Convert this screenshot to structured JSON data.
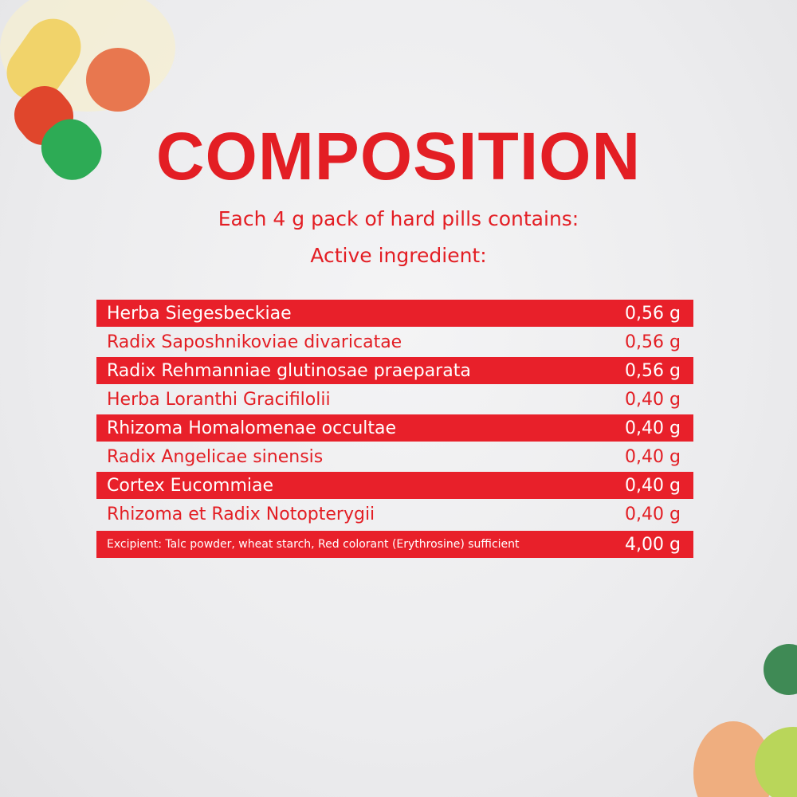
{
  "header": {
    "title": "COMPOSITION",
    "subtitle": [
      "Each 4 g pack of hard pills contains:",
      "Active ingredient:"
    ]
  },
  "table": {
    "rows": [
      [
        "Herba Siegesbeckiae",
        "0,56 g"
      ],
      [
        "Radix Saposhnikoviae divaricatae",
        "0,56 g"
      ],
      [
        "Radix Rehmanniae glutinosae praeparata",
        "0,56 g"
      ],
      [
        "Herba Loranthi Gracifilolii",
        "0,40 g"
      ],
      [
        "Rhizoma Homalomenae occultae",
        "0,40 g"
      ],
      [
        "Radix Angelicae sinensis",
        "0,40 g"
      ],
      [
        "Cortex Eucommiae",
        "0,40 g"
      ],
      [
        "Rhizoma et Radix Notopterygii",
        "0,40 g"
      ],
      [
        "Excipient: Talc powder, wheat starch, Red colorant (Erythrosine) sufficient",
        "4,00 g"
      ]
    ]
  }
}
